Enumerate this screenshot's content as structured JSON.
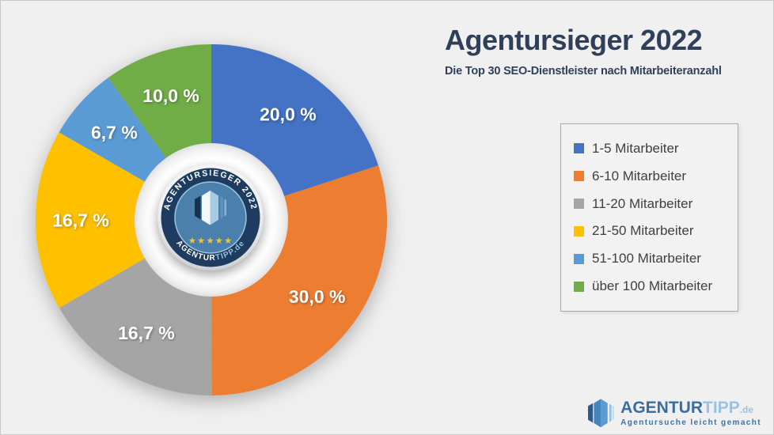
{
  "header": {
    "title": "Agentursieger 2022",
    "subtitle": "Die Top 30 SEO-Dienstleister nach Mitarbeiteranzahl"
  },
  "chart_data": {
    "type": "pie",
    "donut": true,
    "title": "Agentursieger 2022",
    "subtitle": "Die Top 30 SEO-Dienstleister nach Mitarbeiteranzahl",
    "unit": "percent",
    "start_angle_deg": 0,
    "direction": "clockwise",
    "legend_position": "right",
    "slices": [
      {
        "label": "1-5 Mitarbeiter",
        "value": 20.0,
        "display": "20,0 %",
        "color": "#4472C4"
      },
      {
        "label": "6-10 Mitarbeiter",
        "value": 30.0,
        "display": "30,0 %",
        "color": "#ED7D31"
      },
      {
        "label": "11-20 Mitarbeiter",
        "value": 16.7,
        "display": "16,7 %",
        "color": "#A5A5A5"
      },
      {
        "label": "21-50 Mitarbeiter",
        "value": 16.7,
        "display": "16,7 %",
        "color": "#FFC000"
      },
      {
        "label": "51-100 Mitarbeiter",
        "value": 6.7,
        "display": "6,7 %",
        "color": "#5B9BD5"
      },
      {
        "label": "über 100 Mitarbeiter",
        "value": 10.0,
        "display": "10,0 %",
        "color": "#70AD47"
      }
    ]
  },
  "badge": {
    "top_text": "AGENTURSIEGER 2022",
    "bottom_text_primary": "AGENTUR",
    "bottom_text_secondary": "TIPP.de",
    "stars": "★★★★★"
  },
  "footer_logo": {
    "brand_primary": "AGENTUR",
    "brand_secondary": "TIPP",
    "brand_suffix": ".de",
    "tagline": "Agentursuche leicht gemacht"
  }
}
